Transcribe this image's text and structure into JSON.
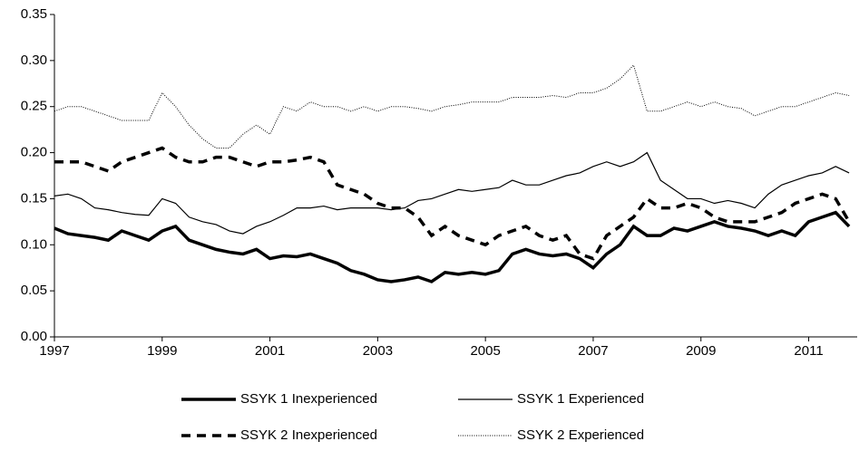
{
  "chart_data": {
    "type": "line",
    "x": [
      1997,
      1997.25,
      1997.5,
      1997.75,
      1998,
      1998.25,
      1998.5,
      1998.75,
      1999,
      1999.25,
      1999.5,
      1999.75,
      2000,
      2000.25,
      2000.5,
      2000.75,
      2001,
      2001.25,
      2001.5,
      2001.75,
      2002,
      2002.25,
      2002.5,
      2002.75,
      2003,
      2003.25,
      2003.5,
      2003.75,
      2004,
      2004.25,
      2004.5,
      2004.75,
      2005,
      2005.25,
      2005.5,
      2005.75,
      2006,
      2006.25,
      2006.5,
      2006.75,
      2007,
      2007.25,
      2007.5,
      2007.75,
      2008,
      2008.25,
      2008.5,
      2008.75,
      2009,
      2009.25,
      2009.5,
      2009.75,
      2010,
      2010.25,
      2010.5,
      2010.75,
      2011,
      2011.25,
      2011.5,
      2011.75
    ],
    "series": [
      {
        "name": "SSYK 1 Inexperienced",
        "color": "#000000",
        "line_style": "thick",
        "values": [
          0.118,
          0.112,
          0.11,
          0.108,
          0.105,
          0.115,
          0.11,
          0.105,
          0.115,
          0.12,
          0.105,
          0.1,
          0.095,
          0.092,
          0.09,
          0.095,
          0.085,
          0.088,
          0.087,
          0.09,
          0.085,
          0.08,
          0.072,
          0.068,
          0.062,
          0.06,
          0.062,
          0.065,
          0.06,
          0.07,
          0.068,
          0.07,
          0.068,
          0.072,
          0.09,
          0.095,
          0.09,
          0.088,
          0.09,
          0.085,
          0.075,
          0.09,
          0.1,
          0.12,
          0.11,
          0.11,
          0.118,
          0.115,
          0.12,
          0.125,
          0.12,
          0.118,
          0.115,
          0.11,
          0.115,
          0.11,
          0.125,
          0.13,
          0.135,
          0.12
        ]
      },
      {
        "name": "SSYK 1 Experienced",
        "color": "#000000",
        "line_style": "thin",
        "values": [
          0.153,
          0.155,
          0.15,
          0.14,
          0.138,
          0.135,
          0.133,
          0.132,
          0.15,
          0.145,
          0.13,
          0.125,
          0.122,
          0.115,
          0.112,
          0.12,
          0.125,
          0.132,
          0.14,
          0.14,
          0.142,
          0.138,
          0.14,
          0.14,
          0.14,
          0.138,
          0.14,
          0.148,
          0.15,
          0.155,
          0.16,
          0.158,
          0.16,
          0.162,
          0.17,
          0.165,
          0.165,
          0.17,
          0.175,
          0.178,
          0.185,
          0.19,
          0.185,
          0.19,
          0.2,
          0.17,
          0.16,
          0.15,
          0.15,
          0.145,
          0.148,
          0.145,
          0.14,
          0.155,
          0.165,
          0.17,
          0.175,
          0.178,
          0.185,
          0.178
        ]
      },
      {
        "name": "SSYK 2 Inexperienced",
        "color": "#000000",
        "line_style": "dashed",
        "values": [
          0.19,
          0.19,
          0.19,
          0.185,
          0.18,
          0.19,
          0.195,
          0.2,
          0.205,
          0.195,
          0.19,
          0.19,
          0.195,
          0.195,
          0.19,
          0.185,
          0.19,
          0.19,
          0.192,
          0.195,
          0.19,
          0.165,
          0.16,
          0.155,
          0.145,
          0.14,
          0.14,
          0.13,
          0.11,
          0.12,
          0.11,
          0.105,
          0.1,
          0.11,
          0.115,
          0.12,
          0.11,
          0.105,
          0.11,
          0.09,
          0.085,
          0.11,
          0.12,
          0.13,
          0.15,
          0.14,
          0.14,
          0.145,
          0.14,
          0.13,
          0.125,
          0.125,
          0.125,
          0.13,
          0.135,
          0.145,
          0.15,
          0.155,
          0.15,
          0.125
        ]
      },
      {
        "name": "SSYK 2 Experienced",
        "color": "#000000",
        "line_style": "dotted",
        "values": [
          0.245,
          0.25,
          0.25,
          0.245,
          0.24,
          0.235,
          0.235,
          0.235,
          0.265,
          0.25,
          0.23,
          0.215,
          0.205,
          0.205,
          0.22,
          0.23,
          0.22,
          0.25,
          0.245,
          0.255,
          0.25,
          0.25,
          0.245,
          0.25,
          0.245,
          0.25,
          0.25,
          0.248,
          0.245,
          0.25,
          0.252,
          0.255,
          0.255,
          0.255,
          0.26,
          0.26,
          0.26,
          0.262,
          0.26,
          0.265,
          0.265,
          0.27,
          0.28,
          0.295,
          0.245,
          0.245,
          0.25,
          0.255,
          0.25,
          0.255,
          0.25,
          0.248,
          0.24,
          0.245,
          0.25,
          0.25,
          0.255,
          0.26,
          0.265,
          0.262
        ]
      }
    ],
    "xlim": [
      1997,
      2011.9
    ],
    "xticks": [
      1997,
      1999,
      2001,
      2003,
      2005,
      2007,
      2009,
      2011
    ],
    "ylim": [
      0,
      0.35
    ],
    "yticks": [
      {
        "value": 0,
        "label": "0.00"
      },
      {
        "value": 0.05,
        "label": "0.05"
      },
      {
        "value": 0.1,
        "label": "0.10"
      },
      {
        "value": 0.15,
        "label": "0.15"
      },
      {
        "value": 0.2,
        "label": "0.20"
      },
      {
        "value": 0.25,
        "label": "0.25"
      },
      {
        "value": 0.3,
        "label": "0.30"
      },
      {
        "value": 0.35,
        "label": "0.35"
      }
    ],
    "grid": false,
    "legend": "bottom"
  }
}
